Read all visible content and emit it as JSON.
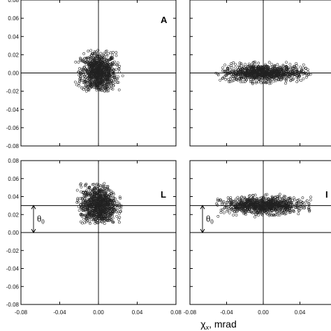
{
  "chart_data": {
    "type": "scatter",
    "xlabel": "χx, mrad",
    "xlim": [
      -0.08,
      0.08
    ],
    "ylim": [
      -0.08,
      0.08
    ],
    "xticks": [
      "-0.08",
      "-0.04",
      "0.00",
      "0.04",
      "0.08"
    ],
    "yticks": [
      "0.08",
      "0.06",
      "0.04",
      "0.02",
      "0.00",
      "-0.02",
      "-0.04",
      "-0.06",
      "-0.08"
    ],
    "marker": "open-circle",
    "marker_color": "#222222",
    "grid": false,
    "panels": [
      {
        "label": "A",
        "center": [
          0.0,
          0.0
        ],
        "spread": [
          0.009,
          0.011
        ],
        "x_range": [
          -0.025,
          0.025
        ],
        "y_range": [
          -0.02,
          0.025
        ],
        "points": 900
      },
      {
        "label": "",
        "center": [
          0.0,
          0.0
        ],
        "spread": [
          0.022,
          0.0045
        ],
        "x_range": [
          -0.052,
          0.052
        ],
        "y_range": [
          -0.012,
          0.013
        ],
        "points": 900
      },
      {
        "label": "L",
        "center": [
          0.0,
          0.03
        ],
        "spread": [
          0.009,
          0.011
        ],
        "x_range": [
          -0.025,
          0.025
        ],
        "y_range": [
          0.01,
          0.055
        ],
        "points": 900,
        "offset_label": "θ0",
        "offset_value": 0.03
      },
      {
        "label": "I",
        "center": [
          0.0,
          0.03
        ],
        "spread": [
          0.022,
          0.0045
        ],
        "x_range": [
          -0.052,
          0.052
        ],
        "y_range": [
          0.017,
          0.043
        ],
        "points": 900,
        "offset_label": "θ0",
        "offset_value": 0.03
      }
    ]
  }
}
